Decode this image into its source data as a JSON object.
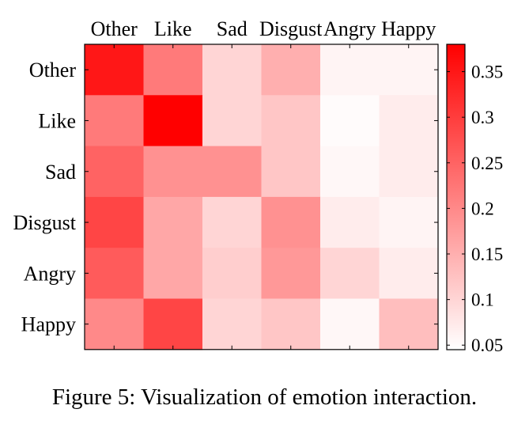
{
  "caption": "Figure 5: Visualization of emotion interaction.",
  "chart_data": {
    "type": "heatmap",
    "title": "",
    "x_labels": [
      "Other",
      "Like",
      "Sad",
      "Disgust",
      "Angry",
      "Happy"
    ],
    "y_labels": [
      "Other",
      "Like",
      "Sad",
      "Disgust",
      "Angry",
      "Happy"
    ],
    "values": [
      [
        0.35,
        0.22,
        0.1,
        0.15,
        0.06,
        0.06
      ],
      [
        0.22,
        0.38,
        0.1,
        0.12,
        0.05,
        0.07
      ],
      [
        0.25,
        0.19,
        0.19,
        0.12,
        0.055,
        0.07
      ],
      [
        0.29,
        0.16,
        0.1,
        0.19,
        0.07,
        0.06
      ],
      [
        0.26,
        0.16,
        0.11,
        0.18,
        0.1,
        0.07
      ],
      [
        0.2,
        0.29,
        0.1,
        0.12,
        0.055,
        0.13
      ]
    ],
    "colorbar": {
      "min": 0.045,
      "max": 0.38,
      "ticks": [
        0.05,
        0.1,
        0.15,
        0.2,
        0.25,
        0.3,
        0.35
      ],
      "tick_labels": [
        "0.05",
        "0.1",
        "0.15",
        "0.2",
        "0.25",
        "0.3",
        "0.35"
      ],
      "low_color": "#ffffff",
      "high_color": "#ff0000"
    }
  }
}
